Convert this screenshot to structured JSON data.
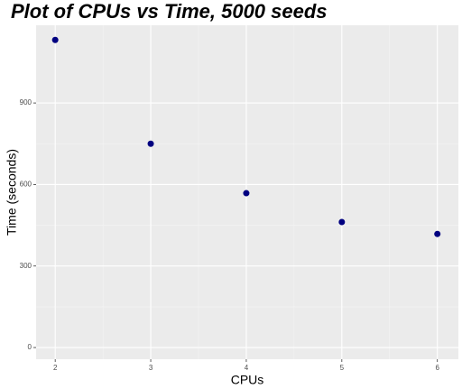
{
  "chart_data": {
    "type": "scatter",
    "title": "Plot of CPUs vs Time, 5000 seeds",
    "x_label": "CPUs",
    "y_label": "Time (seconds)",
    "x": [
      2,
      3,
      4,
      5,
      6
    ],
    "values": [
      1132,
      750,
      568,
      462,
      418
    ],
    "color": "#000080",
    "xlim": [
      1.8,
      6.22
    ],
    "ylim": [
      -43,
      1186
    ],
    "xticks": [
      2,
      3,
      4,
      5,
      6
    ],
    "yticks": [
      0,
      300,
      600,
      900
    ],
    "grid": true
  }
}
